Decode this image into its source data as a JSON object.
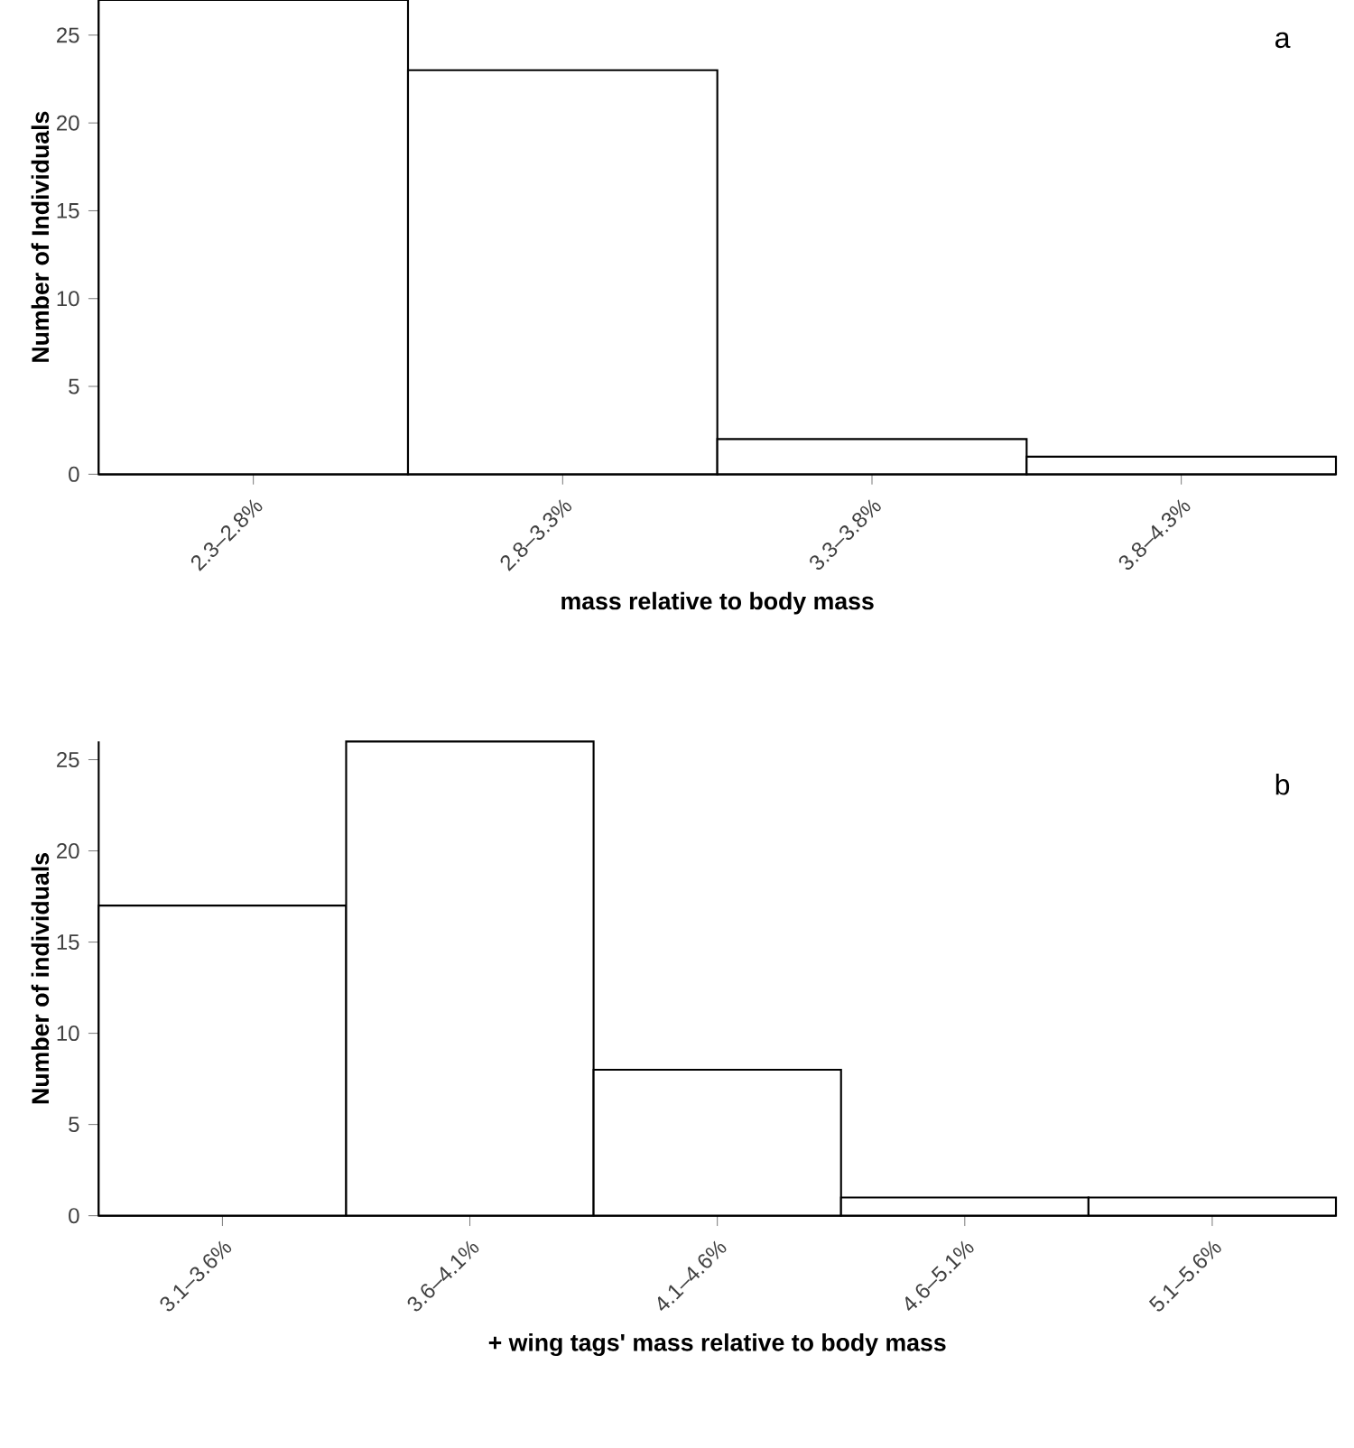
{
  "chart_data": [
    {
      "type": "bar",
      "categories": [
        "2.3–2.8%",
        "2.8–3.3%",
        "3.3–3.8%",
        "3.8–4.3%"
      ],
      "values": [
        27,
        23,
        2,
        1
      ],
      "color": "#ffffff",
      "ylim": [
        0,
        27
      ],
      "yticks": [
        0,
        5,
        10,
        15,
        20,
        25
      ],
      "xlabel": "mass relative to body mass",
      "ylabel": "Number of Individuals",
      "annotations": [
        "a"
      ]
    },
    {
      "type": "bar",
      "categories": [
        "3.1–3.6%",
        "3.6–4.1%",
        "4.1–4.6%",
        "4.6–5.1%",
        "5.1–5.6%"
      ],
      "values": [
        17,
        26,
        8,
        1,
        1
      ],
      "color": "#ffffff",
      "ylim": [
        0,
        26
      ],
      "yticks": [
        0,
        5,
        10,
        15,
        20,
        25
      ],
      "xlabel": "+ wing tags' mass relative to body mass",
      "ylabel": "Number of individuals",
      "annotations": [
        "b"
      ]
    }
  ]
}
